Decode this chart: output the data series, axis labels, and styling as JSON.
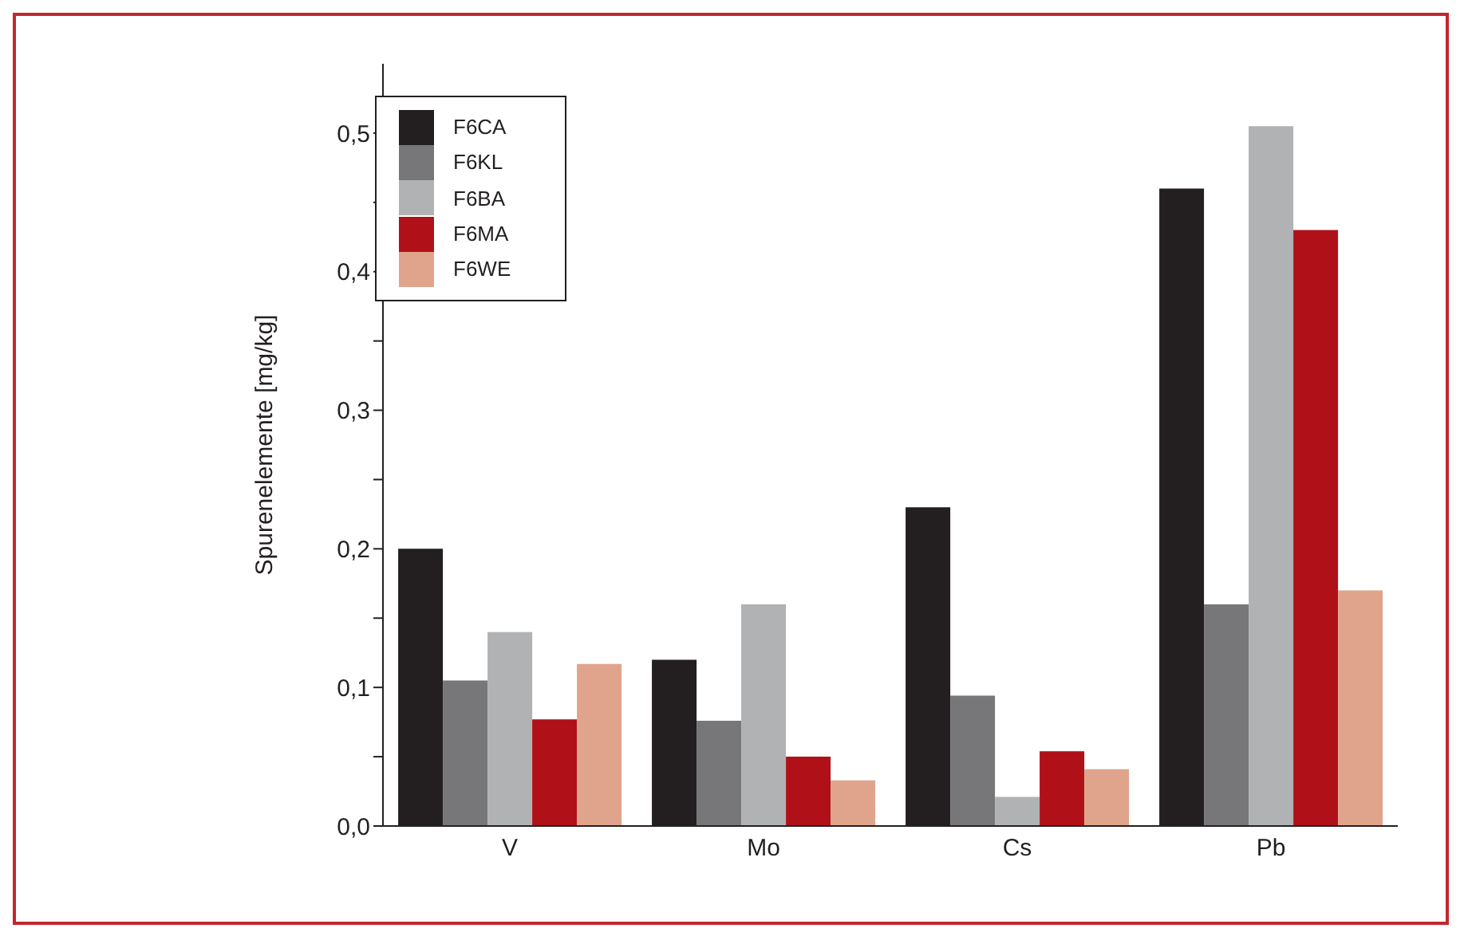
{
  "chart_data": {
    "type": "bar",
    "ylabel": "Spurenelemente [mg/kg]",
    "categories": [
      "V",
      "Mo",
      "Cs",
      "Pb"
    ],
    "series": [
      {
        "name": "F6CA",
        "color": "#231f20",
        "values": [
          0.2,
          0.12,
          0.23,
          0.46
        ]
      },
      {
        "name": "F6KL",
        "color": "#77777a",
        "values": [
          0.105,
          0.076,
          0.094,
          0.16
        ]
      },
      {
        "name": "F6BA",
        "color": "#b1b2b4",
        "values": [
          0.14,
          0.16,
          0.021,
          0.505
        ]
      },
      {
        "name": "F6MA",
        "color": "#b01119",
        "values": [
          0.077,
          0.05,
          0.054,
          0.43
        ]
      },
      {
        "name": "F6WE",
        "color": "#e0a48c",
        "values": [
          0.117,
          0.033,
          0.041,
          0.17
        ]
      }
    ],
    "ylim": [
      0,
      0.55
    ],
    "yticks": [
      {
        "value": 0,
        "label": "0,0"
      },
      {
        "value": 0.05,
        "label": null
      },
      {
        "value": 0.1,
        "label": "0,1"
      },
      {
        "value": 0.15,
        "label": null
      },
      {
        "value": 0.2,
        "label": "0,2"
      },
      {
        "value": 0.25,
        "label": null
      },
      {
        "value": 0.3,
        "label": "0,3"
      },
      {
        "value": 0.35,
        "label": null
      },
      {
        "value": 0.4,
        "label": "0,4"
      },
      {
        "value": 0.45,
        "label": null
      },
      {
        "value": 0.5,
        "label": "0,5"
      }
    ],
    "legend": "top left",
    "grid": false
  }
}
